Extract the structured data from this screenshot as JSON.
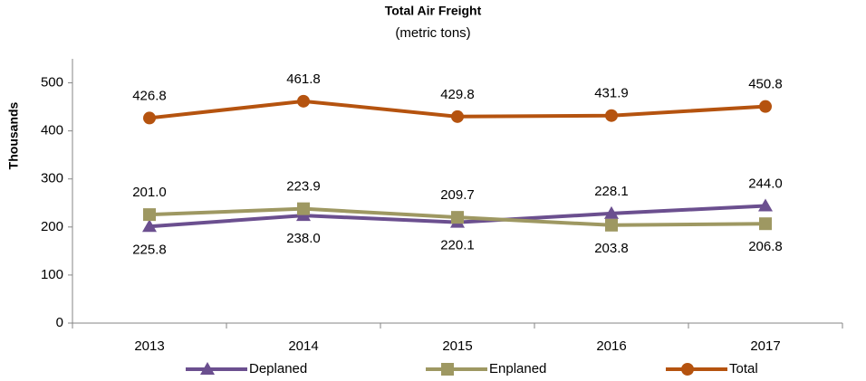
{
  "chart_data": {
    "type": "line",
    "title": "Total Air Freight",
    "subtitle": "(metric tons)",
    "y_label": "Thousands",
    "categories": [
      "2013",
      "2014",
      "2015",
      "2016",
      "2017"
    ],
    "series": [
      {
        "name": "Deplaned",
        "color": "#6b4f8f",
        "marker": "triangle",
        "values": [
          201.0,
          223.9,
          209.7,
          228.1,
          244.0
        ],
        "value_labels": [
          "201.0",
          "223.9",
          "209.7",
          "228.1",
          "244.0"
        ]
      },
      {
        "name": "Enplaned",
        "color": "#9e9862",
        "marker": "square",
        "values": [
          225.8,
          238.0,
          220.1,
          203.8,
          206.8
        ],
        "value_labels": [
          "225.8",
          "238.0",
          "220.1",
          "203.8",
          "206.8"
        ]
      },
      {
        "name": "Total",
        "color": "#b5530f",
        "marker": "circle",
        "values": [
          426.8,
          461.8,
          429.8,
          431.9,
          450.8
        ],
        "value_labels": [
          "426.8",
          "461.8",
          "429.8",
          "431.9",
          "450.8"
        ]
      }
    ],
    "ylim": [
      0,
      550
    ],
    "yticks": [
      0,
      100,
      200,
      300,
      400,
      500
    ],
    "grid": false,
    "legend": "bottom"
  }
}
